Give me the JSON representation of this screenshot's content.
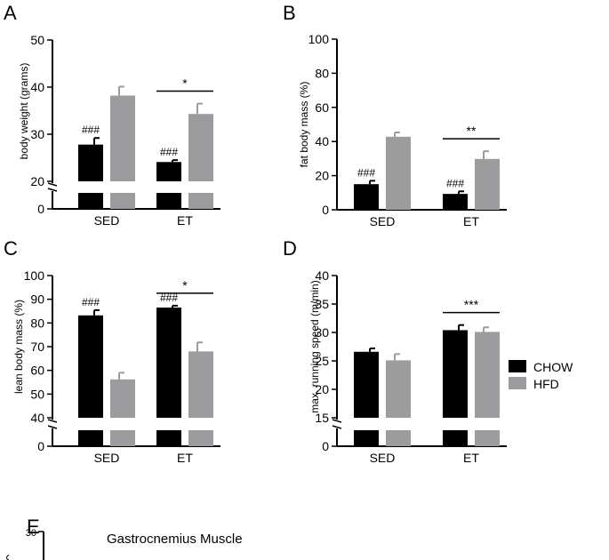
{
  "colors": {
    "chow": "#000000",
    "hfd": "#9c9c9e"
  },
  "legend": {
    "items": [
      {
        "label": "CHOW",
        "color": "#000000"
      },
      {
        "label": "HFD",
        "color": "#9c9c9e"
      }
    ]
  },
  "chart_data": [
    {
      "panel": "A",
      "type": "bar",
      "ylabel": "body weight (grams)",
      "categories": [
        "SED",
        "ET"
      ],
      "axis_break": true,
      "yticks_upper": [
        "20",
        "30",
        "40",
        "50"
      ],
      "yticks_lower": [
        "0"
      ],
      "ylim_upper": [
        20,
        50
      ],
      "series": [
        {
          "name": "CHOW",
          "values": [
            27.8,
            24.1
          ],
          "errors": [
            1.4,
            0.4
          ]
        },
        {
          "name": "HFD",
          "values": [
            38.2,
            34.3
          ],
          "errors": [
            1.9,
            2.2
          ]
        }
      ],
      "annotations": {
        "hash": [
          "###",
          "###"
        ],
        "star": {
          "group": 1,
          "label": "*"
        }
      }
    },
    {
      "panel": "B",
      "type": "bar",
      "ylabel": "fat body mass (%)",
      "categories": [
        "SED",
        "ET"
      ],
      "axis_break": false,
      "yticks": [
        "0",
        "20",
        "40",
        "60",
        "80",
        "100"
      ],
      "ylim": [
        0,
        100
      ],
      "series": [
        {
          "name": "CHOW",
          "values": [
            15.0,
            9.3
          ],
          "errors": [
            2.0,
            1.5
          ]
        },
        {
          "name": "HFD",
          "values": [
            42.8,
            29.8
          ],
          "errors": [
            2.5,
            4.5
          ]
        }
      ],
      "annotations": {
        "hash": [
          "###",
          "###"
        ],
        "star": {
          "group": 1,
          "label": "**"
        }
      }
    },
    {
      "panel": "C",
      "type": "bar",
      "ylabel": "lean body mass (%)",
      "categories": [
        "SED",
        "ET"
      ],
      "axis_break": true,
      "yticks_upper": [
        "40",
        "50",
        "60",
        "70",
        "80",
        "90",
        "100"
      ],
      "yticks_lower": [
        "0"
      ],
      "ylim_upper": [
        40,
        100
      ],
      "series": [
        {
          "name": "CHOW",
          "values": [
            83.2,
            86.5
          ],
          "errors": [
            2.2,
            0.8
          ]
        },
        {
          "name": "HFD",
          "values": [
            56.2,
            68.0
          ],
          "errors": [
            2.8,
            3.8
          ]
        }
      ],
      "annotations": {
        "hash": [
          "###",
          "###"
        ],
        "star": {
          "group": 1,
          "label": "*"
        }
      }
    },
    {
      "panel": "D",
      "type": "bar",
      "ylabel": "max. running speed (m/min)",
      "categories": [
        "SED",
        "ET"
      ],
      "axis_break": true,
      "yticks_upper": [
        "15",
        "20",
        "25",
        "30",
        "35",
        "40"
      ],
      "yticks_lower": [
        "0"
      ],
      "ylim_upper": [
        15,
        40
      ],
      "series": [
        {
          "name": "CHOW",
          "values": [
            26.6,
            30.4
          ],
          "errors": [
            0.6,
            0.9
          ]
        },
        {
          "name": "HFD",
          "values": [
            25.1,
            30.1
          ],
          "errors": [
            1.1,
            0.8
          ]
        }
      ],
      "annotations": {
        "star": {
          "group": 1,
          "label": "***"
        }
      }
    },
    {
      "panel": "E",
      "type": "bar",
      "title": "Gastrocnemius Muscle",
      "yticks_upper": [
        "30"
      ],
      "series": []
    }
  ]
}
